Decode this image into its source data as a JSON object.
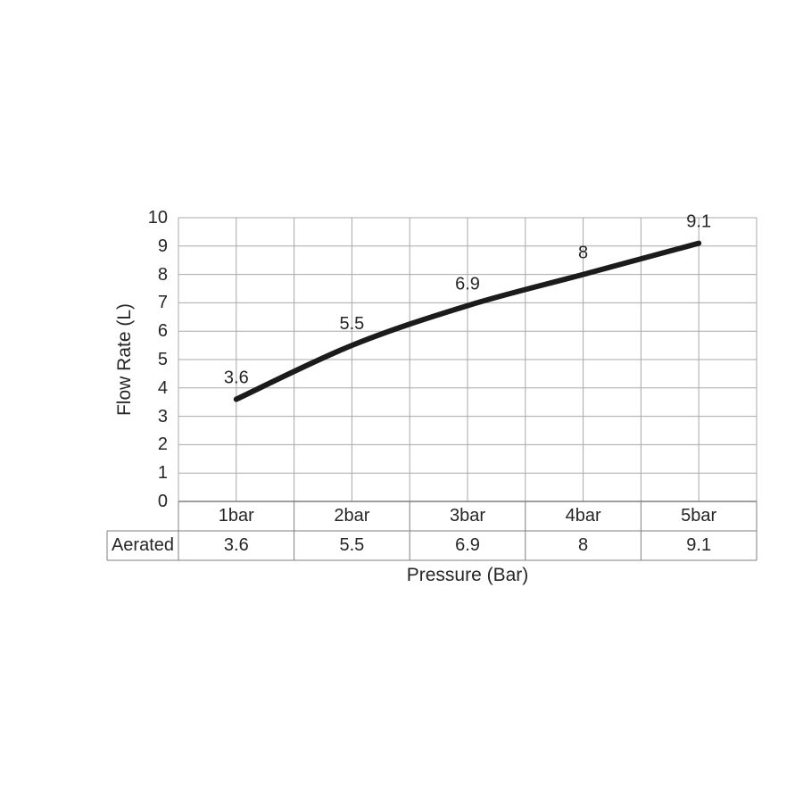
{
  "chart_data": {
    "type": "line",
    "categories": [
      "1bar",
      "2bar",
      "3bar",
      "4bar",
      "5bar"
    ],
    "series": [
      {
        "name": "Aerated",
        "values": [
          3.6,
          5.5,
          6.9,
          8,
          9.1
        ],
        "labels": [
          "3.6",
          "5.5",
          "6.9",
          "8",
          "9.1"
        ],
        "color": "#1b1b1b",
        "smoothed": true
      }
    ],
    "title": "",
    "xlabel": "Pressure (Bar)",
    "ylabel": "Flow Rate (L)",
    "ylim": [
      0,
      10
    ],
    "yticks": [
      "0",
      "1",
      "2",
      "3",
      "4",
      "5",
      "6",
      "7",
      "8",
      "9",
      "10"
    ],
    "grid": true,
    "vertical_gridlines_per_category": 2,
    "legend_position": "none",
    "data_table": {
      "row_label": "Aerated"
    },
    "colors": {
      "gridline": "#a8a8a8",
      "axis_border": "#7f7f7f",
      "text": "#262626",
      "series": "#1b1b1b",
      "background": "#ffffff"
    }
  }
}
